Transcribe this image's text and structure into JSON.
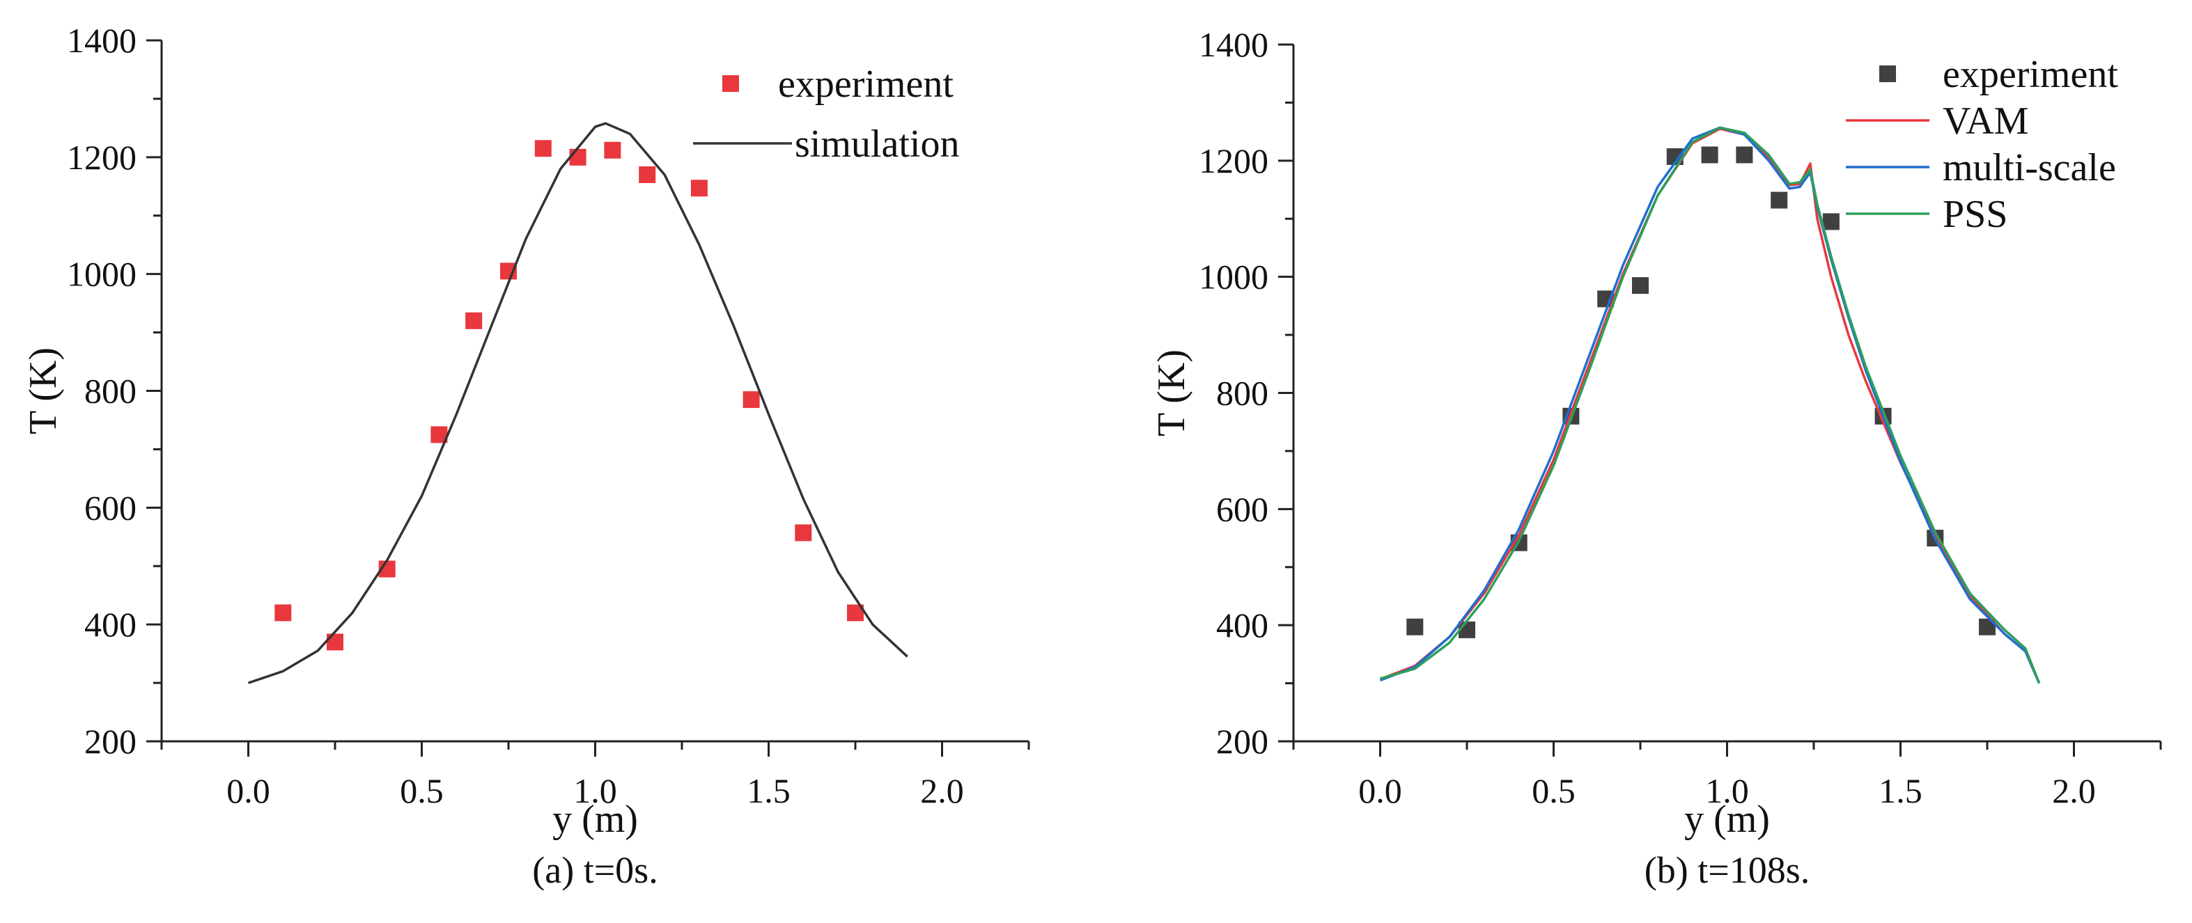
{
  "chart_data": [
    {
      "type": "scatter+line",
      "caption": "(a) t=0s.",
      "xlabel": "y (m)",
      "ylabel": "T (K)",
      "xlim": [
        -0.25,
        2.25
      ],
      "ylim": [
        200,
        1400
      ],
      "xticks": [
        0.0,
        0.5,
        1.0,
        1.5,
        2.0
      ],
      "xtick_labels": [
        "0.0",
        "0.5",
        "1.0",
        "1.5",
        "2.0"
      ],
      "yticks": [
        200,
        400,
        600,
        800,
        1000,
        1200,
        1400
      ],
      "ytick_labels": [
        "200",
        "400",
        "600",
        "800",
        "1000",
        "1200",
        "1400"
      ],
      "legend": {
        "position": "top-right",
        "entries": [
          "experiment",
          "simulation"
        ]
      },
      "series": [
        {
          "name": "experiment",
          "kind": "scatter",
          "color": "#e8383d",
          "points": [
            [
              0.1,
              420
            ],
            [
              0.25,
              370
            ],
            [
              0.4,
              495
            ],
            [
              0.55,
              725
            ],
            [
              0.65,
              920
            ],
            [
              0.75,
              1005
            ],
            [
              0.85,
              1215
            ],
            [
              0.95,
              1200
            ],
            [
              1.05,
              1212
            ],
            [
              1.15,
              1170
            ],
            [
              1.3,
              1147
            ],
            [
              1.45,
              785
            ],
            [
              1.6,
              557
            ],
            [
              1.75,
              420
            ]
          ]
        },
        {
          "name": "simulation",
          "kind": "line",
          "color": "#333333",
          "points": [
            [
              0.0,
              300
            ],
            [
              0.1,
              320
            ],
            [
              0.2,
              355
            ],
            [
              0.3,
              420
            ],
            [
              0.4,
              510
            ],
            [
              0.5,
              620
            ],
            [
              0.6,
              760
            ],
            [
              0.7,
              910
            ],
            [
              0.8,
              1060
            ],
            [
              0.9,
              1180
            ],
            [
              1.0,
              1252
            ],
            [
              1.03,
              1258
            ],
            [
              1.1,
              1240
            ],
            [
              1.2,
              1170
            ],
            [
              1.3,
              1050
            ],
            [
              1.4,
              910
            ],
            [
              1.5,
              760
            ],
            [
              1.6,
              615
            ],
            [
              1.7,
              490
            ],
            [
              1.8,
              400
            ],
            [
              1.9,
              345
            ]
          ]
        }
      ]
    },
    {
      "type": "scatter+line",
      "caption": "(b) t=108s.",
      "xlabel": "y (m)",
      "ylabel": "T (K)",
      "xlim": [
        -0.25,
        2.25
      ],
      "ylim": [
        200,
        1400
      ],
      "xticks": [
        0.0,
        0.5,
        1.0,
        1.5,
        2.0
      ],
      "xtick_labels": [
        "0.0",
        "0.5",
        "1.0",
        "1.5",
        "2.0"
      ],
      "yticks": [
        200,
        400,
        600,
        800,
        1000,
        1200,
        1400
      ],
      "ytick_labels": [
        "200",
        "400",
        "600",
        "800",
        "1000",
        "1200",
        "1400"
      ],
      "legend": {
        "position": "top-right",
        "entries": [
          "experiment",
          "VAM",
          "multi-scale",
          "PSS"
        ]
      },
      "series": [
        {
          "name": "experiment",
          "kind": "scatter",
          "color": "#404040",
          "points": [
            [
              0.1,
              397
            ],
            [
              0.25,
              392
            ],
            [
              0.4,
              542
            ],
            [
              0.55,
              760
            ],
            [
              0.65,
              962
            ],
            [
              0.75,
              985
            ],
            [
              0.85,
              1207
            ],
            [
              0.95,
              1210
            ],
            [
              1.05,
              1210
            ],
            [
              1.15,
              1132
            ],
            [
              1.3,
              1095
            ],
            [
              1.45,
              760
            ],
            [
              1.6,
              550
            ],
            [
              1.75,
              397
            ]
          ]
        },
        {
          "name": "VAM",
          "kind": "line",
          "color": "#e8383d",
          "points": [
            [
              0.0,
              307
            ],
            [
              0.1,
              330
            ],
            [
              0.2,
              380
            ],
            [
              0.3,
              455
            ],
            [
              0.4,
              555
            ],
            [
              0.5,
              685
            ],
            [
              0.6,
              845
            ],
            [
              0.7,
              1005
            ],
            [
              0.8,
              1140
            ],
            [
              0.9,
              1230
            ],
            [
              0.98,
              1255
            ],
            [
              1.05,
              1245
            ],
            [
              1.12,
              1205
            ],
            [
              1.18,
              1158
            ],
            [
              1.21,
              1160
            ],
            [
              1.24,
              1195
            ],
            [
              1.26,
              1100
            ],
            [
              1.3,
              1000
            ],
            [
              1.35,
              900
            ],
            [
              1.4,
              820
            ],
            [
              1.5,
              680
            ],
            [
              1.6,
              555
            ],
            [
              1.7,
              450
            ],
            [
              1.8,
              385
            ],
            [
              1.86,
              355
            ],
            [
              1.9,
              300
            ]
          ]
        },
        {
          "name": "multi-scale",
          "kind": "line",
          "color": "#1f6fd1",
          "points": [
            [
              0.0,
              305
            ],
            [
              0.1,
              328
            ],
            [
              0.2,
              380
            ],
            [
              0.3,
              460
            ],
            [
              0.4,
              565
            ],
            [
              0.5,
              700
            ],
            [
              0.6,
              860
            ],
            [
              0.7,
              1020
            ],
            [
              0.8,
              1155
            ],
            [
              0.9,
              1238
            ],
            [
              0.98,
              1257
            ],
            [
              1.05,
              1245
            ],
            [
              1.12,
              1200
            ],
            [
              1.18,
              1152
            ],
            [
              1.21,
              1155
            ],
            [
              1.24,
              1180
            ],
            [
              1.26,
              1120
            ],
            [
              1.3,
              1030
            ],
            [
              1.35,
              930
            ],
            [
              1.4,
              838
            ],
            [
              1.5,
              682
            ],
            [
              1.6,
              548
            ],
            [
              1.7,
              445
            ],
            [
              1.8,
              385
            ],
            [
              1.86,
              355
            ],
            [
              1.9,
              300
            ]
          ]
        },
        {
          "name": "PSS",
          "kind": "line",
          "color": "#2ca05a",
          "points": [
            [
              0.0,
              308
            ],
            [
              0.1,
              325
            ],
            [
              0.2,
              370
            ],
            [
              0.3,
              445
            ],
            [
              0.4,
              545
            ],
            [
              0.5,
              675
            ],
            [
              0.6,
              835
            ],
            [
              0.7,
              1000
            ],
            [
              0.8,
              1140
            ],
            [
              0.9,
              1232
            ],
            [
              0.98,
              1257
            ],
            [
              1.05,
              1248
            ],
            [
              1.12,
              1210
            ],
            [
              1.18,
              1160
            ],
            [
              1.21,
              1163
            ],
            [
              1.24,
              1185
            ],
            [
              1.26,
              1125
            ],
            [
              1.3,
              1035
            ],
            [
              1.35,
              935
            ],
            [
              1.4,
              845
            ],
            [
              1.5,
              692
            ],
            [
              1.6,
              560
            ],
            [
              1.7,
              455
            ],
            [
              1.8,
              392
            ],
            [
              1.86,
              360
            ],
            [
              1.9,
              300
            ]
          ]
        }
      ]
    }
  ]
}
